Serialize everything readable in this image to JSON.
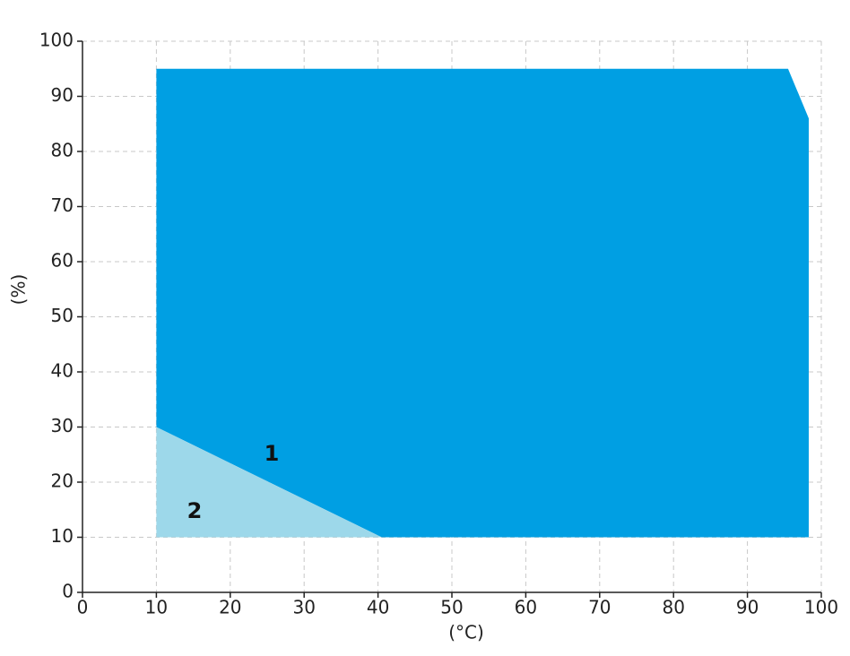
{
  "chart_data": {
    "type": "area",
    "xlabel": "(°C)",
    "ylabel": "(%)",
    "xlim": [
      0,
      100
    ],
    "xticks": [
      0,
      10,
      20,
      30,
      40,
      50,
      60,
      70,
      80,
      90,
      100
    ],
    "ylim": [
      0,
      100
    ],
    "yticks": [
      0,
      10,
      20,
      30,
      40,
      50,
      60,
      70,
      80,
      90,
      100
    ],
    "grid": true,
    "series": [
      {
        "name": "1",
        "color": "#009fe3",
        "x": [
          10,
          10,
          95.5,
          98.3,
          98.3,
          40.5
        ],
        "values": [
          30,
          95,
          95,
          86,
          10,
          10
        ]
      },
      {
        "name": "2",
        "color": "#9dd8ea",
        "x": [
          10,
          10,
          40.5
        ],
        "values": [
          10,
          30,
          10
        ]
      }
    ]
  }
}
